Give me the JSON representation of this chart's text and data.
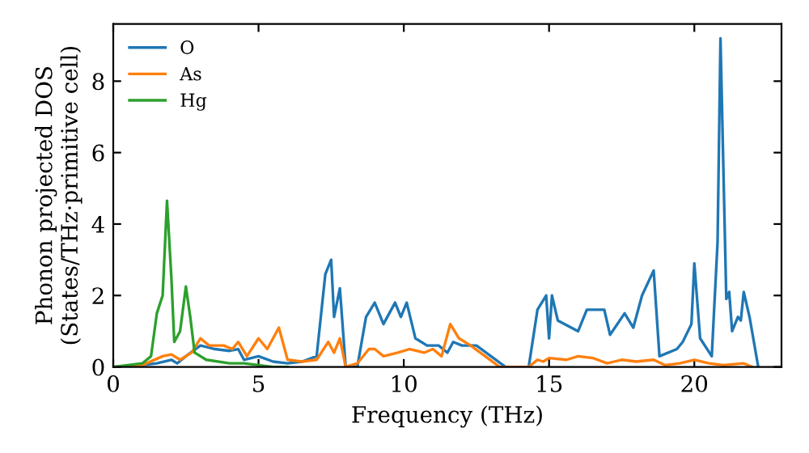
{
  "chart_data": {
    "type": "line",
    "xlabel": "Frequency (THz)",
    "ylabel": "Phonon projected DOS\n(States/THz·primitive cell)",
    "xlim": [
      0,
      23
    ],
    "ylim": [
      0,
      9.6
    ],
    "xticks": [
      0,
      5,
      10,
      15,
      20
    ],
    "yticks": [
      0,
      2,
      4,
      6,
      8
    ],
    "grid": false,
    "legend": "top left",
    "line_style": "solid",
    "marker": "none",
    "series": [
      {
        "name": "O",
        "color": "#1f77b4",
        "x": [
          0,
          1,
          1.5,
          2,
          2.2,
          2.5,
          3,
          3.5,
          4,
          4.3,
          4.5,
          5,
          5.5,
          6,
          6.5,
          7,
          7.3,
          7.5,
          7.6,
          7.8,
          8.0,
          8.4,
          8.7,
          9.0,
          9.3,
          9.7,
          9.9,
          10.1,
          10.4,
          10.8,
          11.2,
          11.5,
          11.7,
          12,
          12.5,
          13,
          13.5,
          14.3,
          14.6,
          14.9,
          15,
          15.1,
          15.3,
          16,
          16.3,
          16.9,
          17.1,
          17.6,
          17.9,
          18.2,
          18.6,
          18.8,
          19.4,
          19.6,
          19.9,
          20.0,
          20.2,
          20.6,
          20.8,
          20.9,
          21.1,
          21.2,
          21.3,
          21.5,
          21.6,
          21.7,
          21.9,
          22.2
        ],
        "values": [
          0,
          0.05,
          0.1,
          0.2,
          0.1,
          0.3,
          0.6,
          0.5,
          0.45,
          0.5,
          0.2,
          0.3,
          0.15,
          0.1,
          0.15,
          0.3,
          2.6,
          3.0,
          1.4,
          2.2,
          0,
          0,
          1.4,
          1.8,
          1.2,
          1.8,
          1.4,
          1.8,
          0.8,
          0.6,
          0.6,
          0.4,
          0.7,
          0.6,
          0.6,
          0.3,
          0,
          0,
          1.6,
          2.0,
          0.8,
          2.0,
          1.3,
          1.0,
          1.6,
          1.6,
          0.9,
          1.5,
          1.1,
          2.0,
          2.7,
          0.3,
          0.5,
          0.7,
          1.2,
          2.9,
          0.8,
          0.3,
          3.5,
          9.2,
          1.9,
          2.1,
          1.0,
          1.4,
          1.3,
          2.1,
          1.4,
          0
        ]
      },
      {
        "name": "As",
        "color": "#ff7f0e",
        "x": [
          0,
          1,
          1.7,
          2,
          2.3,
          2.7,
          3,
          3.3,
          3.8,
          4.1,
          4.3,
          4.6,
          5.0,
          5.3,
          5.7,
          6,
          6.5,
          7,
          7.4,
          7.6,
          7.8,
          8.0,
          8.4,
          8.8,
          9.0,
          9.3,
          9.8,
          10.2,
          10.7,
          11,
          11.3,
          11.6,
          11.9,
          12.3,
          12.8,
          13.3,
          14.3,
          14.6,
          14.8,
          15,
          15.6,
          16,
          16.5,
          17,
          17.5,
          18,
          18.6,
          19,
          19.5,
          20,
          20.5,
          21,
          21.7,
          22
        ],
        "values": [
          0,
          0.05,
          0.3,
          0.35,
          0.2,
          0.4,
          0.8,
          0.6,
          0.6,
          0.5,
          0.7,
          0.3,
          0.8,
          0.5,
          1.1,
          0.2,
          0.15,
          0.2,
          0.7,
          0.4,
          0.8,
          0,
          0.1,
          0.5,
          0.5,
          0.3,
          0.4,
          0.5,
          0.4,
          0.5,
          0.3,
          1.2,
          0.8,
          0.6,
          0.3,
          0,
          0,
          0.2,
          0.15,
          0.25,
          0.2,
          0.3,
          0.25,
          0.1,
          0.2,
          0.15,
          0.2,
          0.05,
          0.1,
          0.2,
          0.1,
          0.05,
          0.1,
          0
        ]
      },
      {
        "name": "Hg",
        "color": "#2ca02c",
        "x": [
          0,
          1,
          1.3,
          1.5,
          1.7,
          1.85,
          2.0,
          2.1,
          2.3,
          2.5,
          2.65,
          2.8,
          3.2,
          4,
          4.5,
          5,
          5.5,
          6
        ],
        "values": [
          0,
          0.1,
          0.3,
          1.5,
          2.0,
          4.65,
          2.5,
          0.7,
          1.0,
          2.25,
          1.4,
          0.4,
          0.2,
          0.1,
          0.1,
          0.05,
          0,
          0
        ]
      }
    ]
  }
}
